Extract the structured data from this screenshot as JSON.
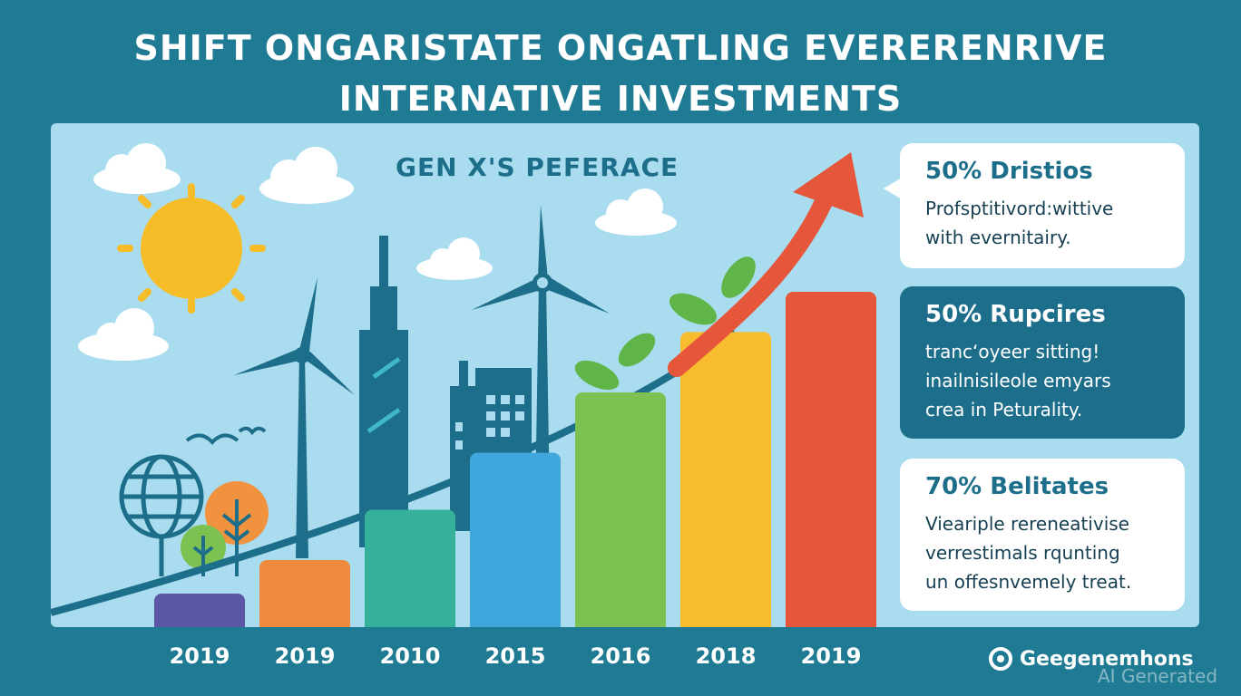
{
  "title": {
    "line1": "SHIFT ONGARISTATE ONGATLING EVERERENRIVE",
    "line2": "INTERNATIVE INVESTMENTS"
  },
  "panel_label": "GEN X'S PEFERACE",
  "bars": [
    {
      "year": "2019",
      "level": 0.1,
      "color": "#5b57a5"
    },
    {
      "year": "2019",
      "level": 0.2,
      "color": "#f08a3e"
    },
    {
      "year": "2010",
      "level": 0.35,
      "color": "#35b09a"
    },
    {
      "year": "2015",
      "level": 0.52,
      "color": "#3fa7dc"
    },
    {
      "year": "2016",
      "level": 0.7,
      "color": "#7cc152"
    },
    {
      "year": "2018",
      "level": 0.88,
      "color": "#f7bd2f"
    },
    {
      "year": "2019",
      "level": 1.0,
      "color": "#e5563a"
    }
  ],
  "cards": [
    {
      "headline": "50% Dristios",
      "lines": [
        "Profsptitivord:wittive",
        "with evernitairy."
      ]
    },
    {
      "headline": "50% Rupcires",
      "lines": [
        "trancʻoyeer sitting!",
        "inailnisileole emyars",
        "crea in Peturality."
      ]
    },
    {
      "headline": "70% Belitates",
      "lines": [
        "Vieariple rereneativise",
        "verrestimals rqunting",
        "un offesnvemely treat."
      ]
    }
  ],
  "brand": {
    "name": "Geegenemhons",
    "icon": "target-icon"
  },
  "watermark": "AI Generated",
  "colors": {
    "background": "#1f7b93",
    "panel": "#a9dcee",
    "arrow": "#e5563a",
    "dark_teal": "#1d6e8a"
  }
}
